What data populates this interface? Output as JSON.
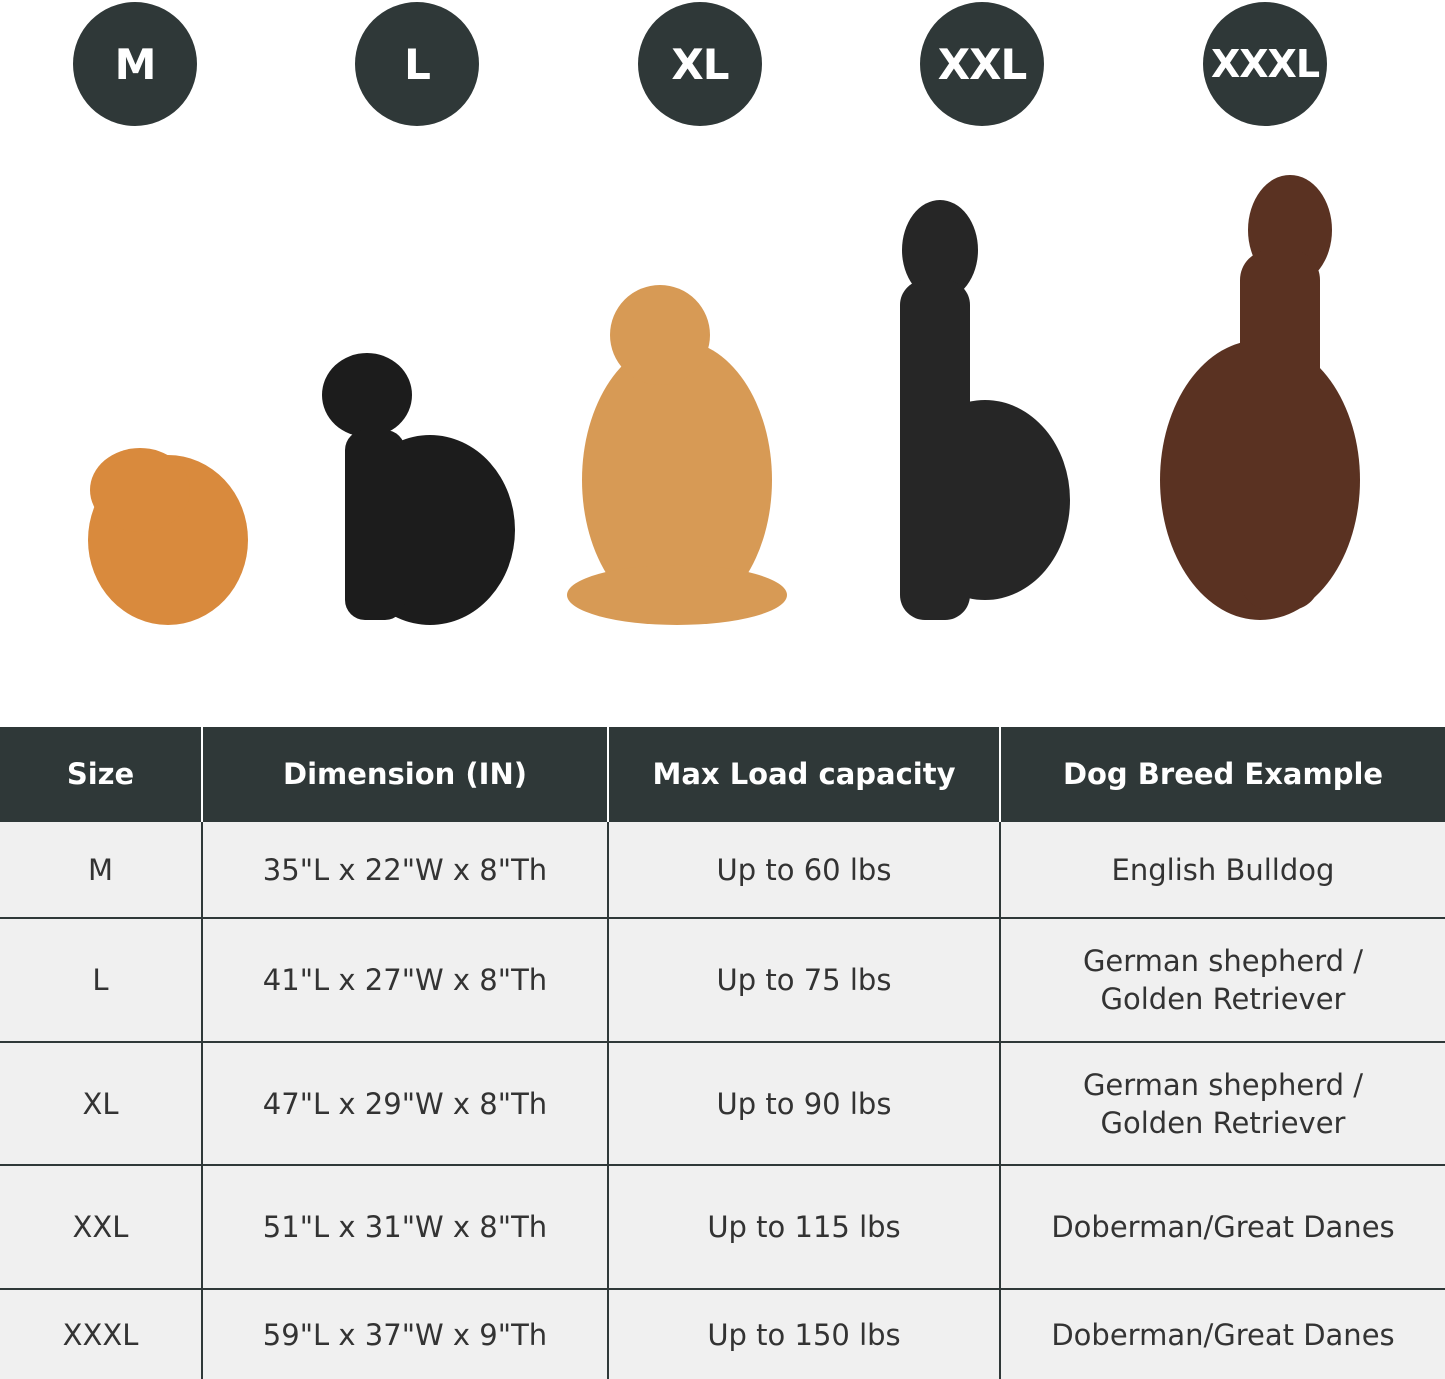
{
  "badges": [
    "M",
    "L",
    "XL",
    "XXL",
    "XXXL"
  ],
  "colors": {
    "dark": "#2f3838",
    "row_bg": "#f0f0f0",
    "text": "#333333"
  },
  "dogs": [
    {
      "name": "pomeranian",
      "color": "#d98a3d"
    },
    {
      "name": "border-collie",
      "color": "#1c1c1c"
    },
    {
      "name": "golden-retriever",
      "color": "#d79a55"
    },
    {
      "name": "great-dane",
      "color": "#262626"
    },
    {
      "name": "doberman",
      "color": "#5a3222"
    }
  ],
  "table": {
    "headers": [
      "Size",
      "Dimension (IN)",
      "Max Load capacity",
      "Dog Breed Example"
    ],
    "rows": [
      [
        "M",
        "35\"L x 22\"W x 8\"Th",
        "Up to 60 lbs",
        "English Bulldog"
      ],
      [
        "L",
        "41\"L x 27\"W x 8\"Th",
        "Up to 75 lbs",
        "German shepherd /\nGolden Retriever"
      ],
      [
        "XL",
        "47\"L x 29\"W x 8\"Th",
        "Up to 90 lbs",
        "German shepherd /\nGolden Retriever"
      ],
      [
        "XXL",
        "51\"L x 31\"W x 8\"Th",
        "Up to 115 lbs",
        "Doberman/Great Danes"
      ],
      [
        "XXXL",
        "59\"L x 37\"W x 9\"Th",
        "Up to 150 lbs",
        "Doberman/Great Danes"
      ]
    ]
  }
}
